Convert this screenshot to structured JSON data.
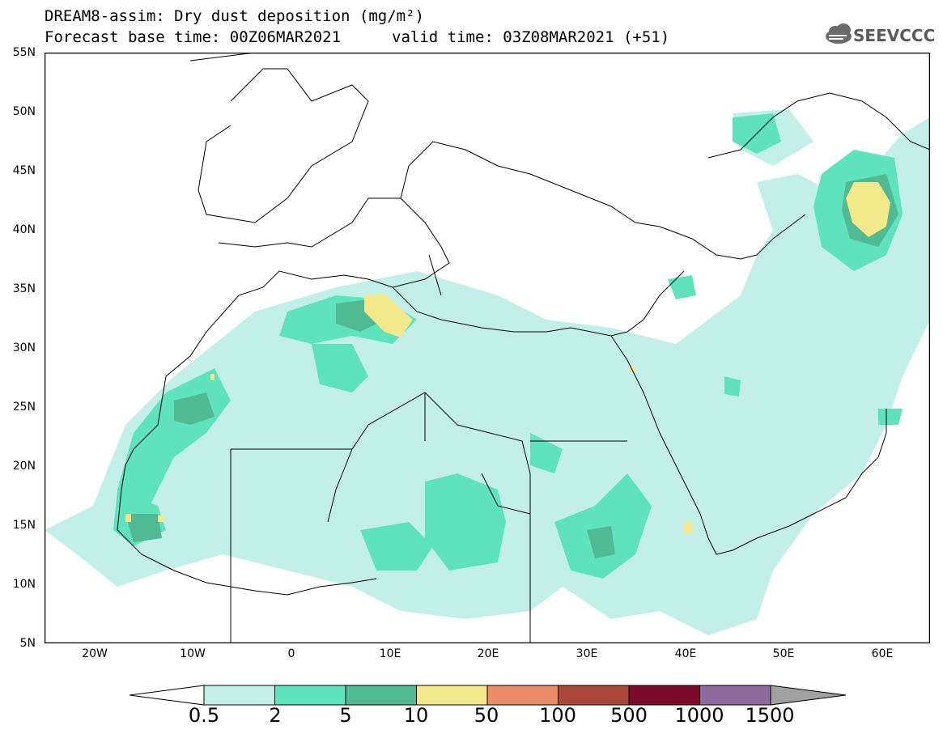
{
  "title": {
    "line1": "DREAM8-assim: Dry dust deposition (mg/m²)",
    "line2": "Forecast base time: 00Z06MAR2021",
    "line3": "valid time: 03Z08MAR2021 (+51)"
  },
  "logo": {
    "text": "SEEVCCC",
    "icon": "cloud-icon"
  },
  "map": {
    "lat_labels": [
      "55N",
      "50N",
      "45N",
      "40N",
      "35N",
      "30N",
      "25N",
      "20N",
      "15N",
      "10N",
      "5N"
    ],
    "lon_labels": [
      "20W",
      "10W",
      "0",
      "10E",
      "20E",
      "30E",
      "40E",
      "50E",
      "60E"
    ]
  },
  "legend": {
    "labels": [
      "0.5",
      "2",
      "5",
      "10",
      "50",
      "100",
      "500",
      "1000",
      "1500"
    ],
    "colors": [
      "#c2f0e9",
      "#5fe3bd",
      "#4fba94",
      "#f3e88a",
      "#ea8c66",
      "#a9473b",
      "#7c0a2c",
      "#8e6a9e",
      "#a0a0a0"
    ]
  }
}
